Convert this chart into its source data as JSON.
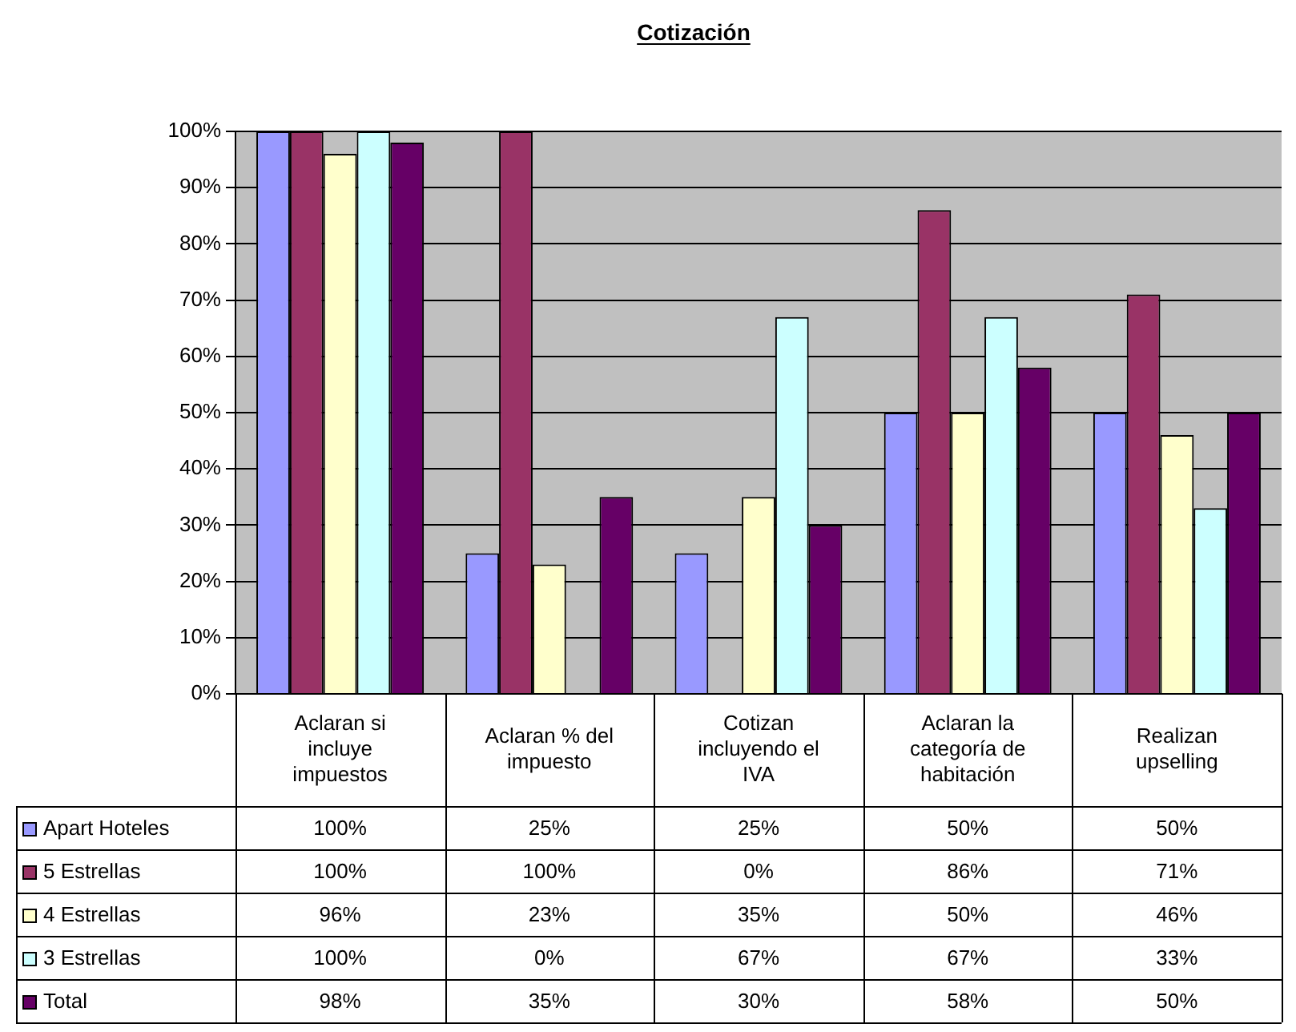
{
  "chart_data": {
    "type": "bar",
    "title": "Cotización",
    "categories": [
      "Aclaran si incluye impuestos",
      "Aclaran % del impuesto",
      "Cotizan incluyendo el IVA",
      "Aclaran la categoría de habitación",
      "Realizan upselling"
    ],
    "series": [
      {
        "name": "Apart Hoteles",
        "color": "#9999ff",
        "values": [
          100,
          25,
          25,
          50,
          50
        ],
        "value_labels": [
          "100%",
          "25%",
          "25%",
          "50%",
          "50%"
        ]
      },
      {
        "name": "5 Estrellas",
        "color": "#993366",
        "values": [
          100,
          100,
          0,
          86,
          71
        ],
        "value_labels": [
          "100%",
          "100%",
          "0%",
          "86%",
          "71%"
        ]
      },
      {
        "name": "4 Estrellas",
        "color": "#ffffcc",
        "values": [
          96,
          23,
          35,
          50,
          46
        ],
        "value_labels": [
          "96%",
          "23%",
          "35%",
          "50%",
          "46%"
        ]
      },
      {
        "name": "3 Estrellas",
        "color": "#ccffff",
        "values": [
          100,
          0,
          67,
          67,
          33
        ],
        "value_labels": [
          "100%",
          "0%",
          "67%",
          "67%",
          "33%"
        ]
      },
      {
        "name": "Total",
        "color": "#660066",
        "values": [
          98,
          35,
          30,
          58,
          50
        ],
        "value_labels": [
          "98%",
          "35%",
          "30%",
          "58%",
          "50%"
        ]
      }
    ],
    "ylim": [
      0,
      100
    ],
    "yticks": [
      {
        "value": 0,
        "label": "0%"
      },
      {
        "value": 10,
        "label": "10%"
      },
      {
        "value": 20,
        "label": "20%"
      },
      {
        "value": 30,
        "label": "30%"
      },
      {
        "value": 40,
        "label": "40%"
      },
      {
        "value": 50,
        "label": "50%"
      },
      {
        "value": 60,
        "label": "60%"
      },
      {
        "value": 70,
        "label": "70%"
      },
      {
        "value": 80,
        "label": "80%"
      },
      {
        "value": 90,
        "label": "90%"
      },
      {
        "value": 100,
        "label": "100%"
      }
    ],
    "grid": "y",
    "legend": "bottom left"
  }
}
